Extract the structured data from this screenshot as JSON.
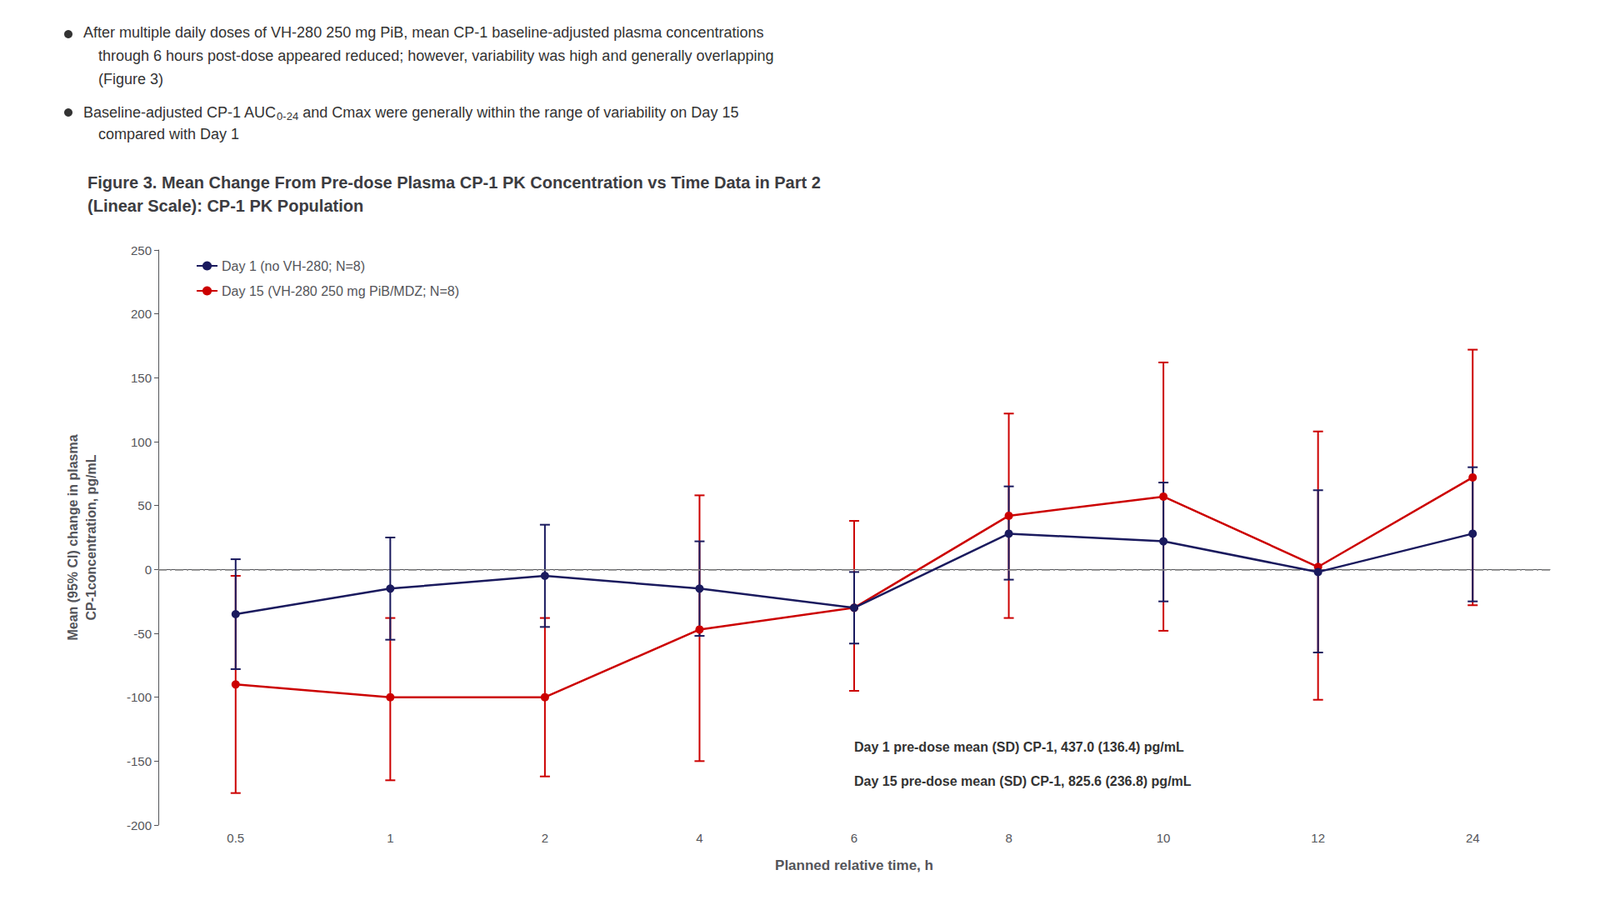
{
  "chart_data": {
    "type": "line",
    "title": "Figure 3. Mean Change From Pre-dose Plasma CP-1 PK Concentration vs Time Data in Part 2\n(Linear Scale): CP-1 PK Population",
    "bullets": [
      [
        "After multiple daily doses of VH-280 250 mg PiB, mean CP-1 baseline-adjusted plasma concentrations",
        "through 6 hours post-dose appeared reduced; however, variability was high and generally overlapping",
        "(Figure 3)"
      ],
      [
        [
          {
            "text": "Baseline-adjusted CP-1 AUC"
          },
          {
            "sub": "0-24"
          },
          {
            "text": " and Cmax were generally within the range of variability on Day 15"
          }
        ],
        "compared with Day 1"
      ]
    ],
    "categories": [
      "0.5",
      "1",
      "2",
      "4",
      "6",
      "8",
      "10",
      "12",
      "24"
    ],
    "xlabel": "Planned relative time, h",
    "ylabel": "Mean (95% CI) change in plasma\nCP-1concentration, pg/mL",
    "ylim": [
      -200,
      250
    ],
    "yticks": [
      -200,
      -150,
      -100,
      -50,
      0,
      50,
      100,
      150,
      200,
      250
    ],
    "grid": false,
    "legend": "upper left",
    "hline": 0,
    "annotations": [
      "Day 1 pre-dose mean (SD) CP-1, 437.0 (136.4) pg/mL",
      "Day 15 pre-dose mean (SD) CP-1, 825.6 (236.8) pg/mL"
    ],
    "series": [
      {
        "name": "Day 1 (no VH-280; N=8)",
        "color": "#1a1a5e",
        "marker": "circle",
        "line_style": "solid",
        "values": [
          -35,
          -15,
          -5,
          -15,
          -30,
          28,
          22,
          -2,
          28
        ],
        "ci_lower": [
          -78,
          -55,
          -45,
          -52,
          -58,
          -8,
          -25,
          -65,
          -25
        ],
        "ci_upper": [
          8,
          25,
          35,
          22,
          -2,
          65,
          68,
          62,
          80
        ]
      },
      {
        "name": "Day 15 (VH-280 250 mg PiB/MDZ; N=8)",
        "color": "#cc0000",
        "marker": "circle",
        "line_style": "solid",
        "values": [
          -90,
          -100,
          -100,
          -47,
          -30,
          42,
          57,
          2,
          72
        ],
        "ci_lower": [
          -175,
          -165,
          -162,
          -150,
          -95,
          -38,
          -48,
          -102,
          -28
        ],
        "ci_upper": [
          -5,
          -38,
          -38,
          58,
          38,
          122,
          162,
          108,
          172
        ]
      }
    ]
  }
}
